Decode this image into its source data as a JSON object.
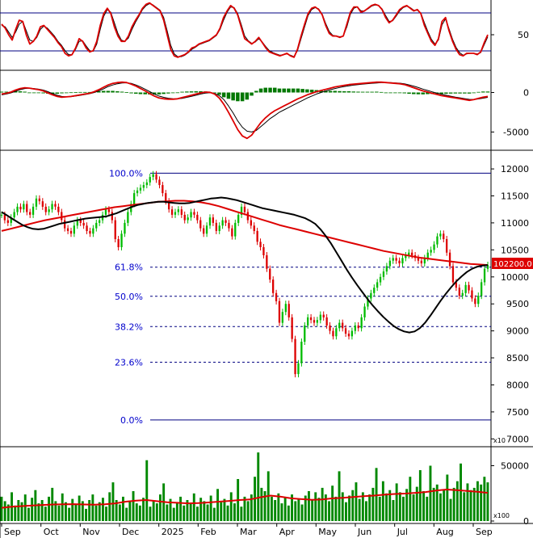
{
  "chart_data": [
    {
      "type": "line",
      "panel": "oscillator",
      "y_ticks": [
        {
          "value": 50,
          "label": "50"
        }
      ],
      "ylim": [
        0,
        100
      ],
      "reference_levels": [
        80,
        20
      ],
      "series_colors": {
        "main": "#dd0000",
        "signal": "#000000"
      },
      "main_values": [
        66,
        60,
        50,
        42,
        58,
        72,
        70,
        50,
        36,
        40,
        48,
        62,
        64,
        58,
        52,
        46,
        38,
        32,
        22,
        18,
        20,
        30,
        44,
        40,
        30,
        24,
        26,
        40,
        64,
        82,
        90,
        82,
        62,
        48,
        40,
        40,
        48,
        62,
        72,
        80,
        90,
        96,
        98,
        94,
        90,
        86,
        72,
        50,
        28,
        18,
        16,
        18,
        20,
        24,
        30,
        32,
        36,
        38,
        40,
        42,
        46,
        50,
        60,
        76,
        86,
        94,
        90,
        80,
        62,
        44,
        40,
        36,
        40,
        46,
        38,
        30,
        24,
        22,
        20,
        18,
        20,
        22,
        18,
        16,
        28,
        48,
        66,
        82,
        90,
        92,
        88,
        80,
        64,
        52,
        48,
        48,
        46,
        48,
        66,
        84,
        92,
        92,
        84,
        86,
        90,
        94,
        96,
        94,
        88,
        76,
        68,
        72,
        80,
        88,
        92,
        94,
        90,
        86,
        88,
        82,
        64,
        52,
        40,
        34,
        44,
        70,
        76,
        56,
        40,
        28,
        20,
        18,
        22,
        22,
        22,
        20,
        24,
        38,
        50
      ],
      "signal_values": [
        64,
        62,
        54,
        46,
        54,
        66,
        70,
        56,
        42,
        40,
        46,
        58,
        63,
        60,
        54,
        48,
        40,
        34,
        26,
        20,
        20,
        28,
        40,
        41,
        33,
        26,
        25,
        36,
        58,
        78,
        88,
        84,
        68,
        52,
        42,
        40,
        45,
        58,
        69,
        78,
        88,
        94,
        97,
        95,
        91,
        87,
        76,
        56,
        34,
        21,
        17,
        17,
        19,
        23,
        28,
        31,
        35,
        37,
        39,
        41,
        45,
        49,
        58,
        72,
        84,
        92,
        91,
        82,
        66,
        48,
        41,
        37,
        39,
        44,
        39,
        32,
        26,
        23,
        21,
        19,
        20,
        21,
        19,
        17,
        26,
        44,
        62,
        79,
        88,
        91,
        89,
        81,
        67,
        55,
        49,
        48,
        47,
        48,
        62,
        81,
        90,
        92,
        86,
        86,
        89,
        93,
        95,
        94,
        89,
        79,
        70,
        71,
        78,
        86,
        91,
        93,
        91,
        87,
        87,
        83,
        68,
        55,
        43,
        36,
        42,
        65,
        74,
        59,
        43,
        31,
        23,
        19,
        21,
        22,
        22,
        21,
        23,
        35,
        47
      ]
    },
    {
      "type": "bar",
      "panel": "macd",
      "y_ticks": [
        {
          "value": 0,
          "label": "0"
        },
        {
          "value": -5000,
          "label": "-5000"
        }
      ],
      "ylim": [
        -7000,
        2500
      ],
      "macd_values": [
        -200,
        -100,
        50,
        300,
        500,
        600,
        550,
        450,
        350,
        200,
        -50,
        -300,
        -500,
        -600,
        -550,
        -500,
        -400,
        -300,
        -200,
        -100,
        100,
        350,
        650,
        950,
        1150,
        1250,
        1300,
        1250,
        1050,
        800,
        500,
        200,
        -150,
        -450,
        -700,
        -800,
        -850,
        -850,
        -800,
        -650,
        -500,
        -350,
        -200,
        -50,
        50,
        20,
        -200,
        -700,
        -1500,
        -2500,
        -3600,
        -4700,
        -5500,
        -5800,
        -5400,
        -4600,
        -3800,
        -3200,
        -2700,
        -2300,
        -2000,
        -1700,
        -1400,
        -1100,
        -800,
        -550,
        -300,
        -100,
        100,
        250,
        400,
        550,
        700,
        800,
        900,
        1000,
        1050,
        1100,
        1150,
        1200,
        1250,
        1300,
        1300,
        1250,
        1200,
        1150,
        1100,
        1000,
        800,
        600,
        400,
        200,
        50,
        -100,
        -250,
        -400,
        -500,
        -600,
        -700,
        -800,
        -900,
        -1000,
        -900,
        -750,
        -600,
        -500
      ],
      "signal_values": [
        -300,
        -200,
        -50,
        150,
        350,
        500,
        550,
        500,
        420,
        300,
        100,
        -150,
        -350,
        -500,
        -550,
        -520,
        -450,
        -360,
        -260,
        -160,
        0,
        200,
        450,
        750,
        950,
        1100,
        1200,
        1220,
        1150,
        950,
        700,
        420,
        100,
        -200,
        -450,
        -620,
        -730,
        -800,
        -810,
        -740,
        -620,
        -490,
        -350,
        -200,
        -80,
        -20,
        -120,
        -400,
        -900,
        -1700,
        -2600,
        -3600,
        -4400,
        -4900,
        -5000,
        -4800,
        -4300,
        -3800,
        -3300,
        -2900,
        -2500,
        -2200,
        -1900,
        -1600,
        -1300,
        -1000,
        -700,
        -450,
        -200,
        0,
        180,
        350,
        500,
        630,
        750,
        850,
        930,
        1000,
        1060,
        1110,
        1160,
        1200,
        1240,
        1250,
        1240,
        1210,
        1170,
        1100,
        960,
        800,
        620,
        430,
        250,
        80,
        -70,
        -220,
        -350,
        -470,
        -580,
        -680,
        -780,
        -870,
        -880,
        -820,
        -720,
        -620
      ],
      "histogram_color": "#007700",
      "macd_color": "#dd0000",
      "signal_color": "#000000"
    },
    {
      "type": "candlestick",
      "panel": "price",
      "ylim": [
        6900,
        12300
      ],
      "y_ticks": [
        {
          "value": 12000,
          "label": "12000"
        },
        {
          "value": 11500,
          "label": "11500"
        },
        {
          "value": 11000,
          "label": "11000"
        },
        {
          "value": 10500,
          "label": "10500"
        },
        {
          "value": 10000,
          "label": "10000"
        },
        {
          "value": 9500,
          "label": "9500"
        },
        {
          "value": 9000,
          "label": "9000"
        },
        {
          "value": 8500,
          "label": "8500"
        },
        {
          "value": 8000,
          "label": "8000"
        },
        {
          "value": 7500,
          "label": "7500"
        },
        {
          "value": 7000,
          "label": "7000"
        }
      ],
      "axis_multiplier": "x10",
      "last_price_label": "102200.0",
      "last_price": 10220,
      "fibonacci": [
        {
          "label": "100.0%",
          "value": 11920,
          "line": "solid"
        },
        {
          "label": "61.8%",
          "value": 10180,
          "line": "dashed"
        },
        {
          "label": "50.0%",
          "value": 9640,
          "line": "dashed"
        },
        {
          "label": "38.2%",
          "value": 9080,
          "line": "dashed"
        },
        {
          "label": "23.6%",
          "value": 8420,
          "line": "dashed"
        },
        {
          "label": "0.0%",
          "value": 7350,
          "line": "solid"
        }
      ],
      "close": [
        11150,
        11050,
        11000,
        11100,
        11200,
        11300,
        11250,
        11350,
        11200,
        11150,
        11300,
        11450,
        11400,
        11300,
        11200,
        11250,
        11350,
        11300,
        11200,
        11050,
        10900,
        10850,
        10800,
        10950,
        11050,
        11000,
        10950,
        10850,
        10800,
        10900,
        11000,
        11050,
        11150,
        11250,
        11200,
        11050,
        10700,
        10550,
        10800,
        11000,
        11200,
        11350,
        11550,
        11600,
        11650,
        11700,
        11750,
        11850,
        11900,
        11800,
        11700,
        11550,
        11400,
        11250,
        11150,
        11200,
        11250,
        11150,
        11050,
        11100,
        11200,
        11150,
        11050,
        10900,
        10800,
        10950,
        11100,
        11000,
        10850,
        10950,
        11050,
        11000,
        10900,
        10750,
        11000,
        11150,
        11300,
        11200,
        11050,
        10950,
        10850,
        10650,
        10550,
        10400,
        10150,
        9950,
        9700,
        9550,
        9150,
        9350,
        9500,
        9250,
        8850,
        8200,
        8400,
        8800,
        9100,
        9250,
        9200,
        9150,
        9200,
        9300,
        9250,
        9100,
        9000,
        8900,
        9050,
        9150,
        9050,
        8950,
        8900,
        9000,
        9100,
        9050,
        9250,
        9450,
        9600,
        9700,
        9800,
        9900,
        10000,
        10100,
        10200,
        10300,
        10350,
        10300,
        10250,
        10350,
        10400,
        10450,
        10400,
        10350,
        10300,
        10250,
        10350,
        10450,
        10500,
        10600,
        10750,
        10800,
        10700,
        10450,
        10200,
        9900,
        9800,
        9650,
        9700,
        9850,
        9750,
        9600,
        9500,
        9650,
        9900,
        10150,
        10220
      ],
      "sma_short_values": [
        11200,
        11140,
        11080,
        11020,
        10960,
        10920,
        10890,
        10880,
        10890,
        10920,
        10950,
        10980,
        11000,
        11020,
        11040,
        11060,
        11080,
        11090,
        11100,
        11110,
        11120,
        11150,
        11180,
        11220,
        11260,
        11300,
        11330,
        11350,
        11370,
        11380,
        11390,
        11390,
        11380,
        11370,
        11360,
        11360,
        11370,
        11390,
        11410,
        11430,
        11450,
        11460,
        11470,
        11460,
        11440,
        11420,
        11390,
        11360,
        11330,
        11300,
        11270,
        11250,
        11230,
        11210,
        11190,
        11170,
        11150,
        11120,
        11090,
        11040,
        10980,
        10880,
        10760,
        10620,
        10460,
        10300,
        10140,
        9990,
        9850,
        9720,
        9590,
        9470,
        9360,
        9260,
        9170,
        9090,
        9030,
        8990,
        8970,
        8990,
        9050,
        9150,
        9280,
        9420,
        9560,
        9690,
        9810,
        9920,
        10010,
        10090,
        10150,
        10190,
        10210,
        10220
      ],
      "sma_long_values": [
        10850,
        10890,
        10930,
        10970,
        11010,
        11050,
        11080,
        11110,
        11140,
        11170,
        11200,
        11230,
        11260,
        11290,
        11310,
        11330,
        11350,
        11370,
        11390,
        11400,
        11410,
        11410,
        11400,
        11380,
        11350,
        11310,
        11260,
        11210,
        11160,
        11110,
        11060,
        11010,
        10960,
        10920,
        10880,
        10840,
        10800,
        10760,
        10720,
        10680,
        10640,
        10600,
        10560,
        10520,
        10480,
        10450,
        10420,
        10390,
        10360,
        10340,
        10320,
        10300,
        10280,
        10260,
        10240,
        10230,
        10220
      ],
      "line_colors": {
        "sma_long": "#dd0000",
        "sma_short": "#000000"
      },
      "up_color": "#00bb00",
      "down_color": "#dd0000"
    },
    {
      "type": "bar",
      "panel": "volume",
      "ylim": [
        0,
        65000
      ],
      "y_ticks": [
        {
          "value": 50000,
          "label": "50000"
        },
        {
          "value": 0,
          "label": "0"
        }
      ],
      "axis_multiplier": "x100",
      "x_tick_labels": [
        "Sep",
        "Oct",
        "Nov",
        "Dec",
        "2025",
        "Feb",
        "Mar",
        "Apr",
        "May",
        "Jun",
        "Jul",
        "Aug",
        "Sep"
      ],
      "bar_color": "#008800",
      "ma_color": "#dd0000",
      "volume_values": [
        22000,
        18000,
        15000,
        26000,
        14000,
        19000,
        17000,
        24000,
        12000,
        21000,
        28000,
        16000,
        19000,
        13000,
        22000,
        30000,
        18000,
        14000,
        25000,
        17000,
        12000,
        20000,
        15000,
        23000,
        18000,
        11000,
        19000,
        24000,
        14000,
        17000,
        21000,
        13000,
        26000,
        35000,
        19000,
        15000,
        22000,
        12000,
        18000,
        27000,
        16000,
        14000,
        21000,
        55000,
        13000,
        18000,
        16000,
        24000,
        34000,
        15000,
        20000,
        12000,
        17000,
        22000,
        14000,
        19000,
        16000,
        25000,
        13000,
        21000,
        18000,
        15000,
        23000,
        12000,
        29000,
        17000,
        20000,
        14000,
        26000,
        16000,
        38000,
        13000,
        22000,
        18000,
        24000,
        40000,
        62000,
        30000,
        27000,
        45000,
        22000,
        19000,
        25000,
        16000,
        21000,
        14000,
        24000,
        18000,
        20000,
        15000,
        23000,
        27000,
        19000,
        26000,
        21000,
        30000,
        24000,
        18000,
        32000,
        22000,
        45000,
        26000,
        17000,
        23000,
        28000,
        35000,
        20000,
        26000,
        18000,
        24000,
        30000,
        48000,
        22000,
        36000,
        25000,
        28000,
        19000,
        34000,
        26000,
        22000,
        29000,
        40000,
        24000,
        31000,
        46000,
        27000,
        22000,
        50000,
        30000,
        33000,
        25000,
        28000,
        42000,
        20000,
        30000,
        36000,
        52000,
        26000,
        34000,
        28000,
        30000,
        36000,
        33000,
        40000,
        35000
      ],
      "volume_ma_values": [
        12000,
        13000,
        13500,
        14000,
        14500,
        15000,
        15200,
        15300,
        15000,
        14800,
        15200,
        16000,
        17500,
        18500,
        19000,
        18000,
        17000,
        16500,
        16000,
        16200,
        16800,
        17500,
        18200,
        19000,
        19500,
        21500,
        23000,
        22000,
        20500,
        19800,
        19200,
        19500,
        20500,
        21000,
        21800,
        22500,
        23000,
        23800,
        24500,
        24800,
        25500,
        26200,
        27500,
        28500,
        28000,
        27200,
        26500,
        25500
      ]
    }
  ]
}
